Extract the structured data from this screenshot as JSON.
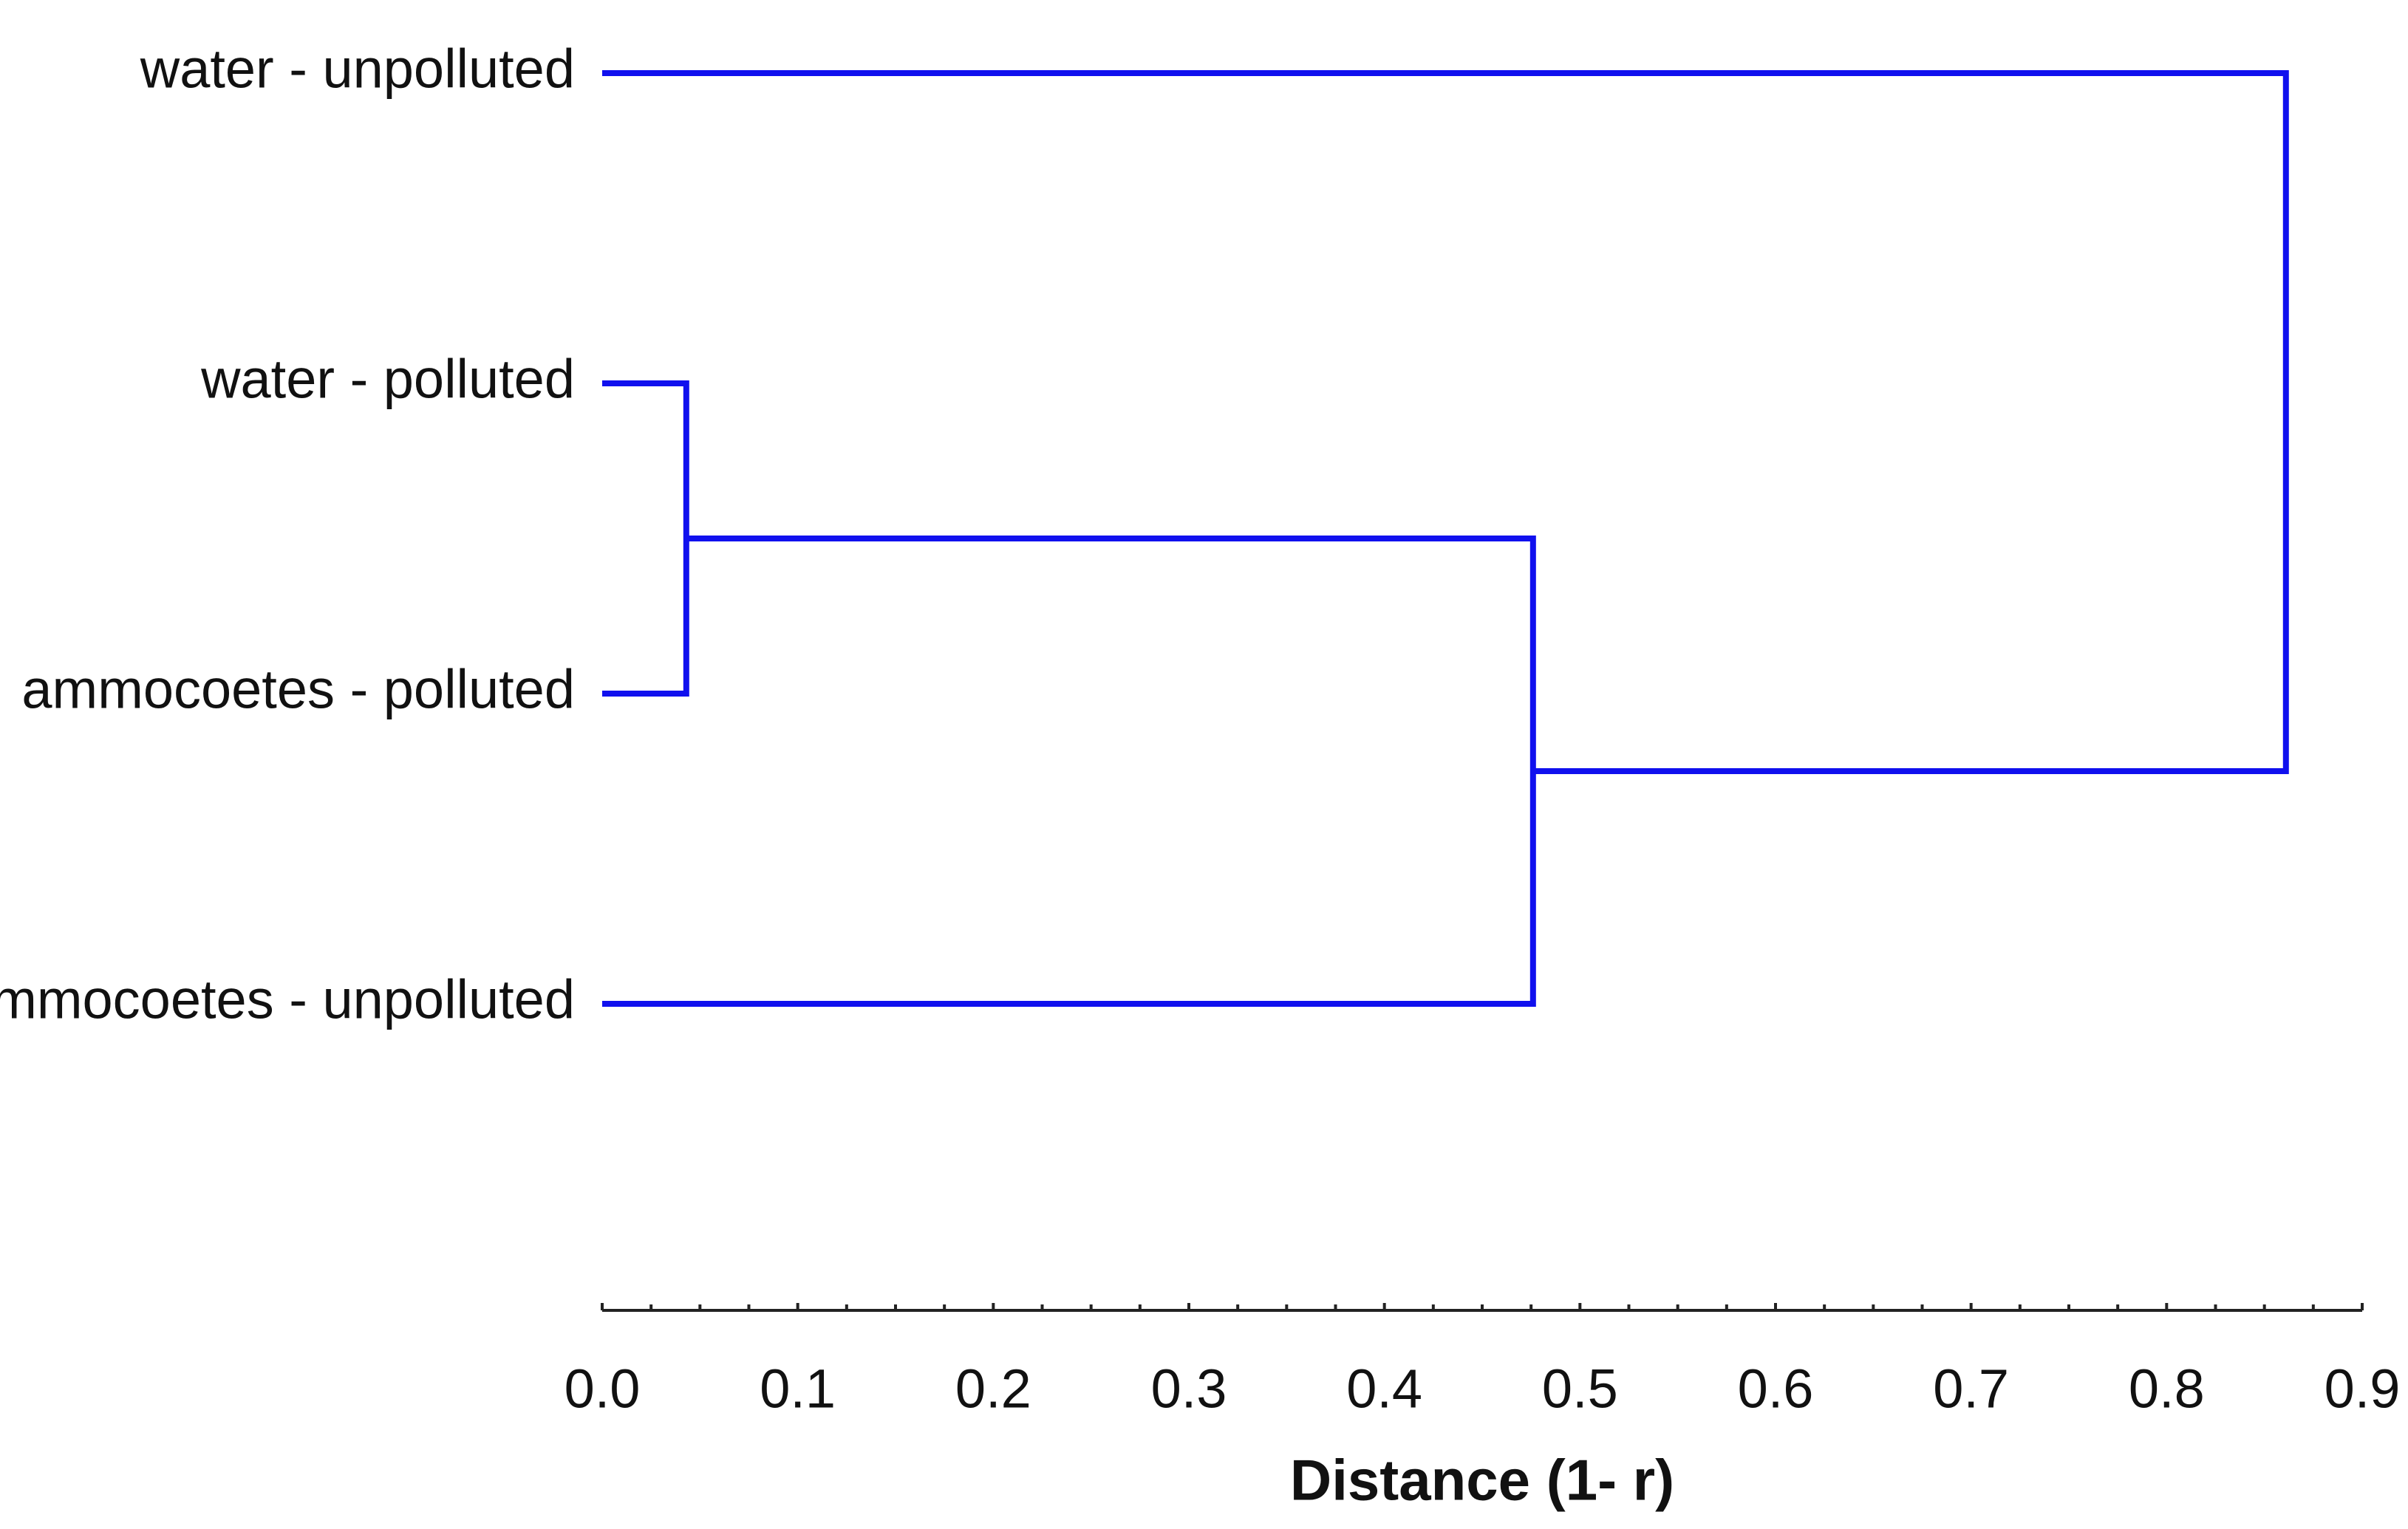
{
  "chart_data": {
    "type": "dendrogram",
    "leaves": [
      "water - unpolluted",
      "water - polluted",
      "ammocoetes - polluted",
      "ammocoetes - unpolluted"
    ],
    "merges": [
      {
        "children": [
          1,
          2
        ],
        "distance": 0.043
      },
      {
        "children": [
          4,
          3
        ],
        "distance": 0.476
      },
      {
        "children": [
          0,
          5
        ],
        "distance": 0.861
      }
    ],
    "color": "#1010ee",
    "xlabel": "Distance (1- r)",
    "xlim": [
      0,
      0.9
    ],
    "xticks": [
      {
        "value": 0,
        "label": "0.0"
      },
      0.1,
      0.2,
      0.3,
      0.4,
      0.5,
      0.6,
      0.7,
      0.8,
      0.9
    ],
    "xminorticks": [
      0.025,
      0.05,
      0.075,
      0.125,
      0.15,
      0.175,
      0.225,
      0.25,
      0.275,
      0.325,
      0.35,
      0.375,
      0.425,
      0.45,
      0.475,
      0.525,
      0.55,
      0.575,
      0.625,
      0.65,
      0.675,
      0.725,
      0.75,
      0.775,
      0.825,
      0.85,
      0.875
    ]
  }
}
